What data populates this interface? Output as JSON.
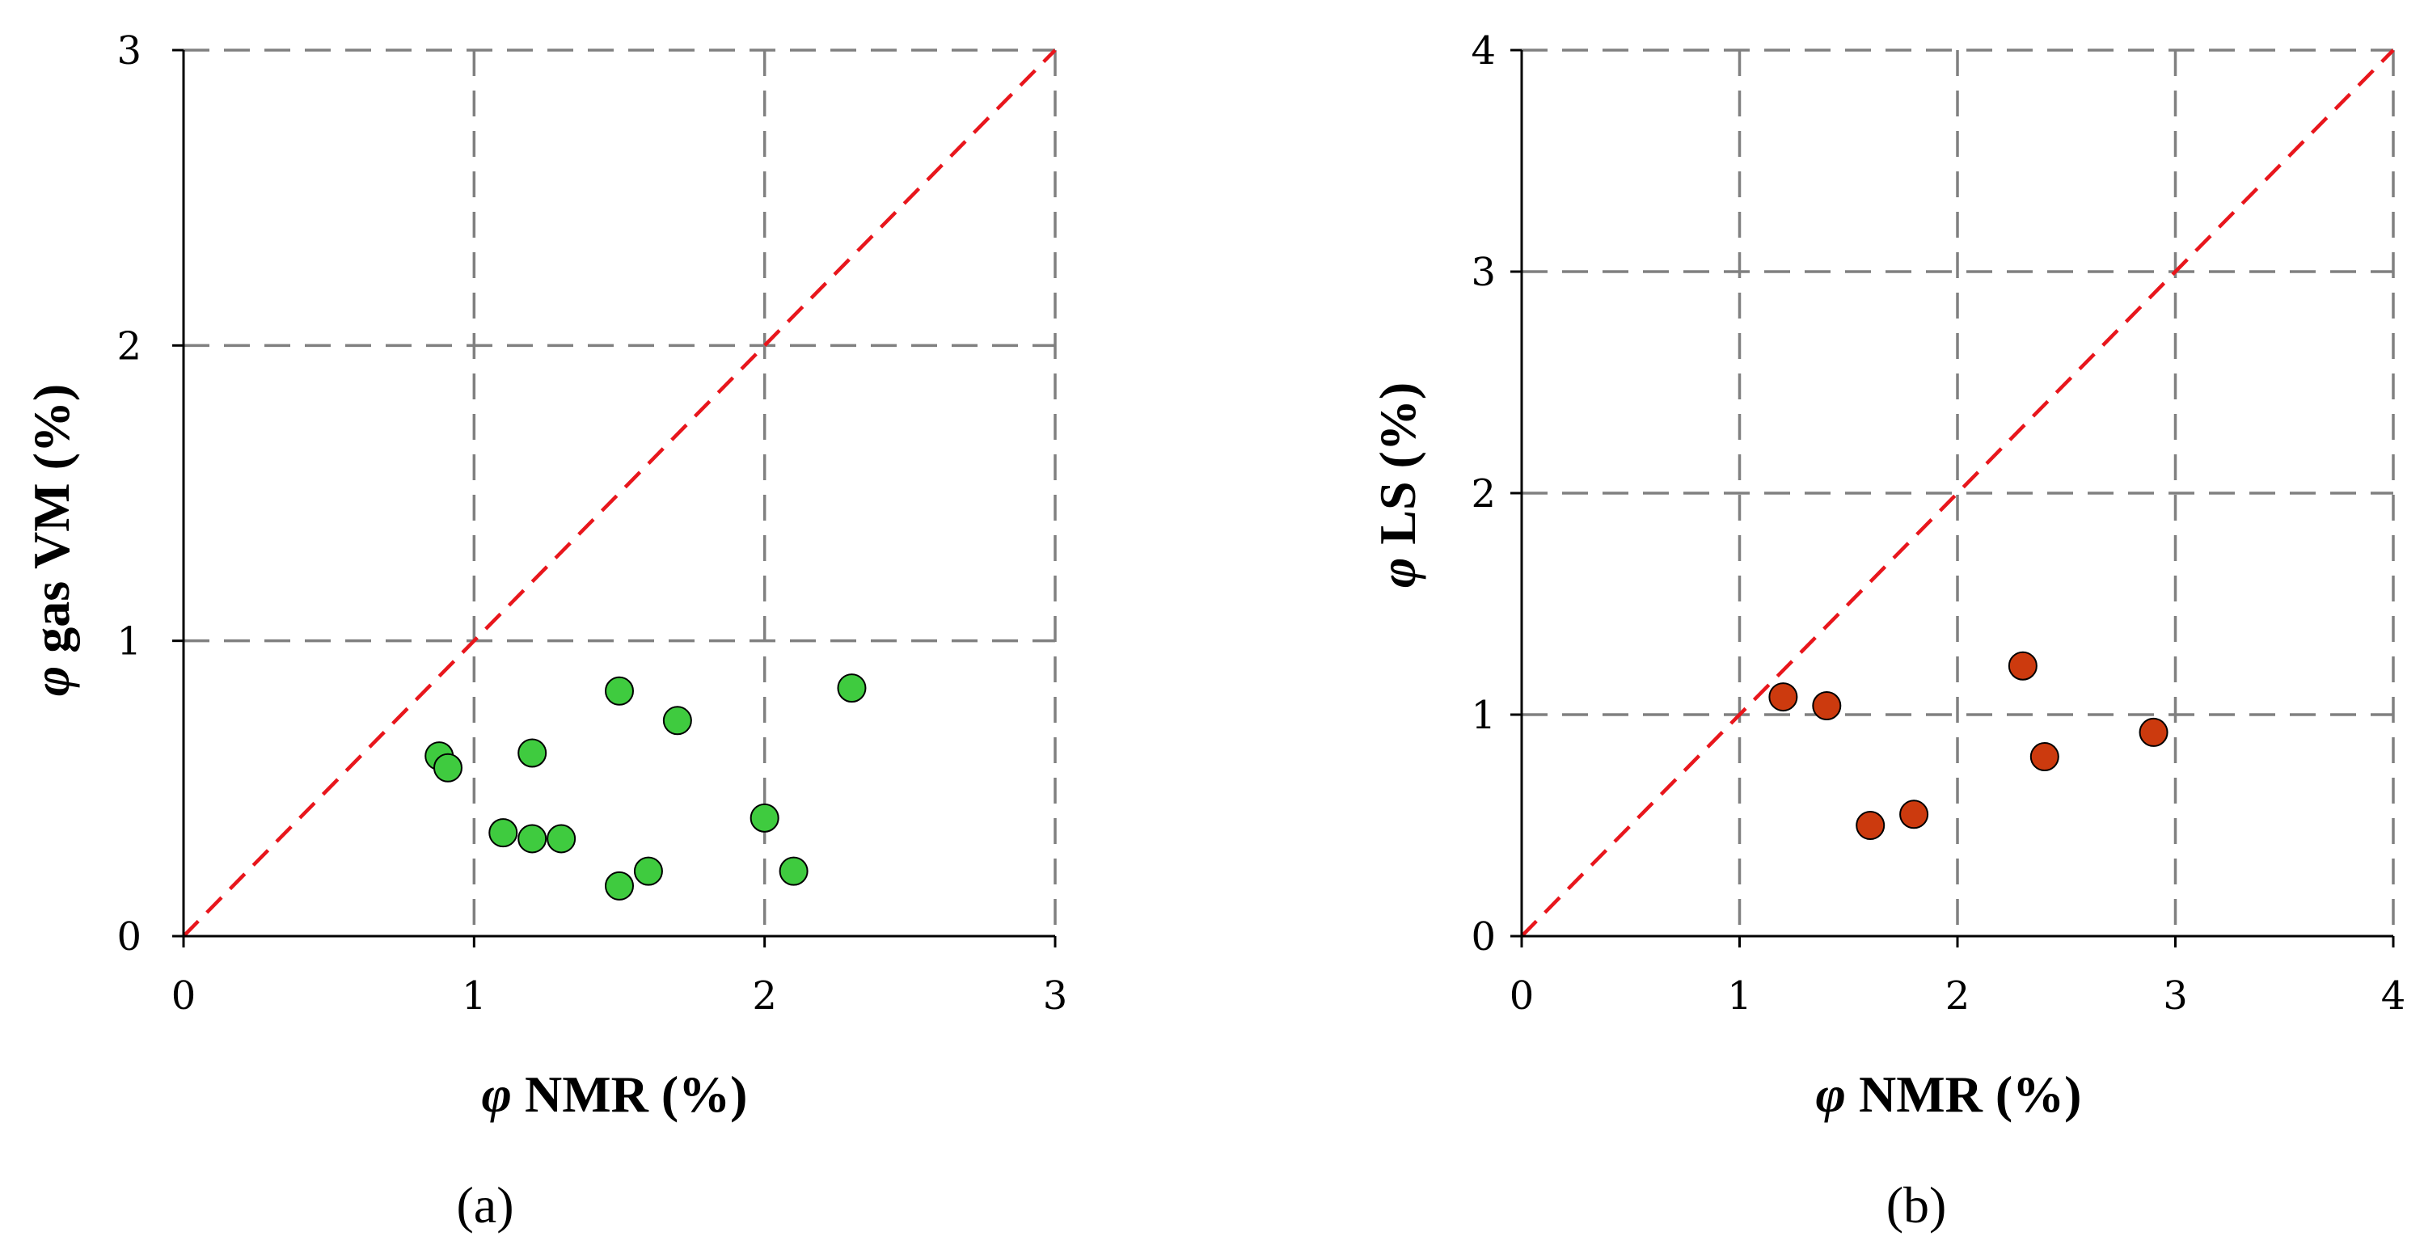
{
  "chart_data": [
    {
      "type": "scatter",
      "panel_label": "(a)",
      "title": "",
      "xlabel": "φ NMR (%)",
      "ylabel": "φ gas VM (%)",
      "xlabel_symbol": "φ",
      "xlabel_text": "NMR (%)",
      "ylabel_symbol": "φ",
      "ylabel_text": "gas VM (%)",
      "xlim": [
        0,
        3
      ],
      "ylim": [
        0,
        3
      ],
      "xticks": [
        "0",
        "1",
        "2",
        "3"
      ],
      "yticks": [
        "0",
        "1",
        "2",
        "3"
      ],
      "grid": true,
      "reference_line": "y = x",
      "marker_color": "#3fcb3f",
      "series": [
        {
          "name": "gas VM vs NMR",
          "points": [
            [
              0.88,
              0.61
            ],
            [
              0.91,
              0.57
            ],
            [
              1.1,
              0.35
            ],
            [
              1.2,
              0.33
            ],
            [
              1.2,
              0.62
            ],
            [
              1.3,
              0.33
            ],
            [
              1.5,
              0.83
            ],
            [
              1.5,
              0.17
            ],
            [
              1.6,
              0.22
            ],
            [
              1.7,
              0.73
            ],
            [
              2.0,
              0.4
            ],
            [
              2.1,
              0.22
            ],
            [
              2.3,
              0.84
            ]
          ]
        }
      ]
    },
    {
      "type": "scatter",
      "panel_label": "(b)",
      "title": "",
      "xlabel": "φ NMR (%)",
      "ylabel": "φ LS (%)",
      "xlabel_symbol": "φ",
      "xlabel_text": "NMR (%)",
      "ylabel_symbol": "φ",
      "ylabel_text": "LS (%)",
      "xlim": [
        0,
        4
      ],
      "ylim": [
        0,
        4
      ],
      "xticks": [
        "0",
        "1",
        "2",
        "3",
        "4"
      ],
      "yticks": [
        "0",
        "1",
        "2",
        "3",
        "4"
      ],
      "grid": true,
      "reference_line": "y = x",
      "marker_color": "#cc3a0e",
      "series": [
        {
          "name": "LS vs NMR",
          "points": [
            [
              1.2,
              1.08
            ],
            [
              1.4,
              1.04
            ],
            [
              1.6,
              0.5
            ],
            [
              1.8,
              0.55
            ],
            [
              2.3,
              1.22
            ],
            [
              2.4,
              0.81
            ],
            [
              2.9,
              0.92
            ]
          ]
        }
      ]
    }
  ]
}
